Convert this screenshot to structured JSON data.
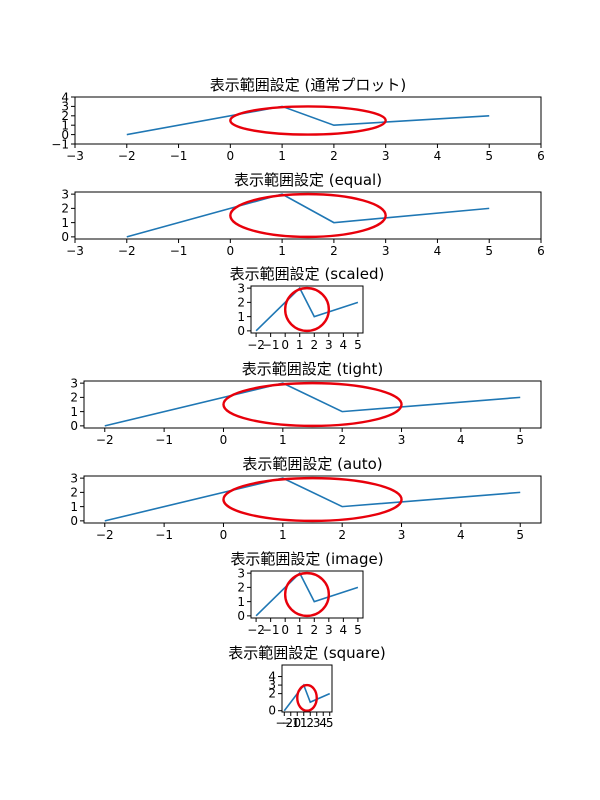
{
  "chart_data": [
    {
      "type": "line",
      "title": "表示範囲設定 (通常プロット)",
      "xlim": [
        -3,
        6
      ],
      "ylim": [
        -1,
        4
      ],
      "xticks": [
        -3,
        -2,
        -1,
        0,
        1,
        2,
        3,
        4,
        5,
        6
      ],
      "xtick_labels": [
        "−3",
        "−2",
        "−1",
        "0",
        "1",
        "2",
        "3",
        "4",
        "5",
        "6"
      ],
      "yticks": [
        -1,
        0,
        1,
        2,
        3,
        4
      ],
      "ytick_labels": [
        "−1",
        "0",
        "1",
        "2",
        "3",
        "4"
      ],
      "series": [
        {
          "x": [
            -2,
            1,
            2,
            5
          ],
          "y": [
            0,
            3,
            1,
            2
          ],
          "color": "#1f77b4"
        }
      ],
      "circle": {
        "center": [
          1.5,
          1.5
        ],
        "radius": 1.5,
        "color": "#e8000b"
      }
    },
    {
      "type": "line",
      "title": "表示範囲設定 (equal)",
      "xlim": [
        -3,
        6
      ],
      "ylim": [
        -0.15,
        3.15
      ],
      "xticks": [
        -3,
        -2,
        -1,
        0,
        1,
        2,
        3,
        4,
        5,
        6
      ],
      "xtick_labels": [
        "−3",
        "−2",
        "−1",
        "0",
        "1",
        "2",
        "3",
        "4",
        "5",
        "6"
      ],
      "yticks": [
        0,
        1,
        2,
        3
      ],
      "ytick_labels": [
        "0",
        "1",
        "2",
        "3"
      ],
      "series": [
        {
          "x": [
            -2,
            1,
            2,
            5
          ],
          "y": [
            0,
            3,
            1,
            2
          ],
          "color": "#1f77b4"
        }
      ],
      "circle": {
        "center": [
          1.5,
          1.5
        ],
        "radius": 1.5,
        "color": "#e8000b"
      }
    },
    {
      "type": "line",
      "title": "表示範囲設定 (scaled)",
      "xlim": [
        -2.35,
        5.35
      ],
      "ylim": [
        -0.15,
        3.15
      ],
      "xticks": [
        -2,
        -1,
        0,
        1,
        2,
        3,
        4,
        5
      ],
      "xtick_labels": [
        "−2",
        "−1",
        "0",
        "1",
        "2",
        "3",
        "4",
        "5"
      ],
      "yticks": [
        0,
        1,
        2,
        3
      ],
      "ytick_labels": [
        "0",
        "1",
        "2",
        "3"
      ],
      "series": [
        {
          "x": [
            -2,
            1,
            2,
            5
          ],
          "y": [
            0,
            3,
            1,
            2
          ],
          "color": "#1f77b4"
        }
      ],
      "circle": {
        "center": [
          1.5,
          1.5
        ],
        "radius": 1.5,
        "color": "#e8000b"
      }
    },
    {
      "type": "line",
      "title": "表示範囲設定 (tight)",
      "xlim": [
        -2.35,
        5.35
      ],
      "ylim": [
        -0.15,
        3.15
      ],
      "xticks": [
        -2,
        -1,
        0,
        1,
        2,
        3,
        4,
        5
      ],
      "xtick_labels": [
        "−2",
        "−1",
        "0",
        "1",
        "2",
        "3",
        "4",
        "5"
      ],
      "yticks": [
        0,
        1,
        2,
        3
      ],
      "ytick_labels": [
        "0",
        "1",
        "2",
        "3"
      ],
      "series": [
        {
          "x": [
            -2,
            1,
            2,
            5
          ],
          "y": [
            0,
            3,
            1,
            2
          ],
          "color": "#1f77b4"
        }
      ],
      "circle": {
        "center": [
          1.5,
          1.5
        ],
        "radius": 1.5,
        "color": "#e8000b"
      }
    },
    {
      "type": "line",
      "title": "表示範囲設定 (auto)",
      "xlim": [
        -2.35,
        5.35
      ],
      "ylim": [
        -0.15,
        3.15
      ],
      "xticks": [
        -2,
        -1,
        0,
        1,
        2,
        3,
        4,
        5
      ],
      "xtick_labels": [
        "−2",
        "−1",
        "0",
        "1",
        "2",
        "3",
        "4",
        "5"
      ],
      "yticks": [
        0,
        1,
        2,
        3
      ],
      "ytick_labels": [
        "0",
        "1",
        "2",
        "3"
      ],
      "series": [
        {
          "x": [
            -2,
            1,
            2,
            5
          ],
          "y": [
            0,
            3,
            1,
            2
          ],
          "color": "#1f77b4"
        }
      ],
      "circle": {
        "center": [
          1.5,
          1.5
        ],
        "radius": 1.5,
        "color": "#e8000b"
      }
    },
    {
      "type": "line",
      "title": "表示範囲設定 (image)",
      "xlim": [
        -2.35,
        5.35
      ],
      "ylim": [
        -0.15,
        3.15
      ],
      "xticks": [
        -2,
        -1,
        0,
        1,
        2,
        3,
        4,
        5
      ],
      "xtick_labels": [
        "−2",
        "−1",
        "0",
        "1",
        "2",
        "3",
        "4",
        "5"
      ],
      "yticks": [
        0,
        1,
        2,
        3
      ],
      "ytick_labels": [
        "0",
        "1",
        "2",
        "3"
      ],
      "series": [
        {
          "x": [
            -2,
            1,
            2,
            5
          ],
          "y": [
            0,
            3,
            1,
            2
          ],
          "color": "#1f77b4"
        }
      ],
      "circle": {
        "center": [
          1.5,
          1.5
        ],
        "radius": 1.5,
        "color": "#e8000b"
      }
    },
    {
      "type": "line",
      "title": "表示範囲設定 (square)",
      "xlim": [
        -2.35,
        5.35
      ],
      "ylim": [
        -0.15,
        5.35
      ],
      "xticks": [
        -2,
        -1,
        0,
        1,
        2,
        3,
        4,
        5
      ],
      "xtick_labels": [
        "−2",
        "−1",
        "0",
        "1",
        "2",
        "3",
        "4",
        "5"
      ],
      "yticks": [
        0,
        2,
        3,
        4
      ],
      "ytick_labels": [
        "0",
        "2",
        "3",
        "4"
      ],
      "series": [
        {
          "x": [
            -2,
            1,
            2,
            5
          ],
          "y": [
            0,
            3,
            1,
            2
          ],
          "color": "#1f77b4"
        }
      ],
      "circle": {
        "center": [
          1.5,
          1.5
        ],
        "radius": 1.5,
        "color": "#e8000b"
      }
    }
  ]
}
